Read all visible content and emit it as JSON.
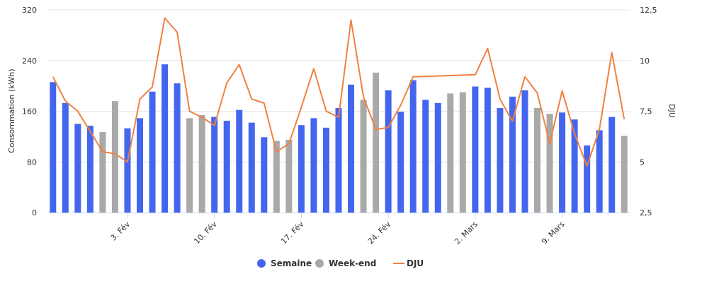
{
  "chart_data": {
    "type": "bar",
    "title": "",
    "ylabel": "Consommation (kWh)",
    "ylabel_right": "DJU",
    "ylim": [
      0,
      320
    ],
    "yticks": [
      "0",
      "80",
      "160",
      "240",
      "320"
    ],
    "ylim_right": [
      2.5,
      12.5
    ],
    "yticks_right": [
      "2,5",
      "5",
      "7,5",
      "10",
      "12,5"
    ],
    "x_tick_labels": [
      {
        "index": 6,
        "label": "3. Fév"
      },
      {
        "index": 13,
        "label": "10. Fév"
      },
      {
        "index": 20,
        "label": "17. Fév"
      },
      {
        "index": 27,
        "label": "24. Fév"
      },
      {
        "index": 34,
        "label": "2. Mars"
      },
      {
        "index": 41,
        "label": "9. Mars"
      }
    ],
    "legend_position": "bottom-center",
    "series": [
      {
        "name": "Semaine",
        "kind": "bar",
        "color": "#4466ee",
        "values": [
          206,
          173,
          140,
          137,
          null,
          null,
          133,
          149,
          191,
          234,
          204,
          null,
          null,
          151,
          145,
          162,
          142,
          119,
          null,
          null,
          138,
          149,
          134,
          165,
          202,
          null,
          null,
          193,
          159,
          209,
          178,
          173,
          null,
          null,
          199,
          197,
          165,
          183,
          193,
          null,
          null,
          158,
          147,
          106,
          130,
          151,
          null
        ]
      },
      {
        "name": "Week-end",
        "kind": "bar",
        "color": "#a9a9a9",
        "values": [
          null,
          null,
          null,
          null,
          127,
          176,
          null,
          null,
          null,
          null,
          null,
          149,
          154,
          null,
          null,
          null,
          null,
          null,
          113,
          115,
          null,
          null,
          null,
          null,
          null,
          178,
          221,
          null,
          null,
          null,
          null,
          null,
          188,
          190,
          null,
          null,
          null,
          null,
          null,
          165,
          156,
          null,
          null,
          null,
          null,
          null,
          121
        ]
      },
      {
        "name": "DJU",
        "kind": "line",
        "color": "#f08040",
        "values": [
          9.2,
          8.0,
          7.5,
          6.5,
          5.5,
          5.4,
          5.0,
          8.1,
          8.7,
          12.1,
          11.4,
          7.5,
          7.2,
          6.8,
          8.9,
          9.8,
          8.1,
          7.9,
          5.5,
          5.9,
          7.7,
          9.6,
          7.5,
          7.2,
          12.0,
          8.2,
          6.6,
          6.7,
          7.8,
          9.2,
          null,
          null,
          null,
          null,
          9.3,
          10.6,
          8.1,
          7.0,
          9.2,
          8.4,
          5.9,
          8.5,
          6.4,
          4.8,
          6.6,
          10.4,
          7.1
        ]
      }
    ]
  }
}
